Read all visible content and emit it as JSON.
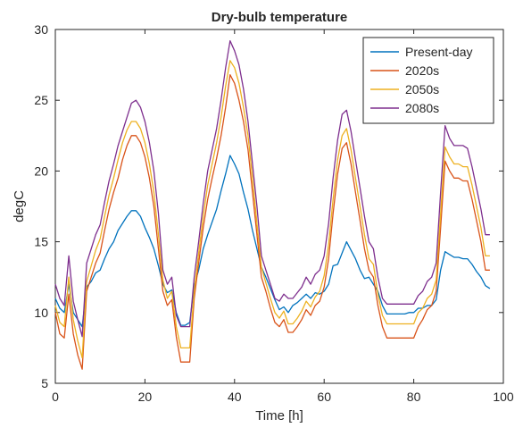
{
  "chart_data": {
    "type": "line",
    "title": "Dry-bulb temperature",
    "xlabel": "Time [h]",
    "ylabel": "degC",
    "xlim": [
      0,
      100
    ],
    "ylim": [
      5,
      30
    ],
    "xticks": [
      0,
      20,
      40,
      60,
      80,
      100
    ],
    "yticks": [
      5,
      10,
      15,
      20,
      25,
      30
    ],
    "grid": false,
    "legend_position": "top-right",
    "x": [
      0,
      1,
      2,
      3,
      4,
      5,
      6,
      7,
      8,
      9,
      10,
      11,
      12,
      13,
      14,
      15,
      16,
      17,
      18,
      19,
      20,
      21,
      22,
      23,
      24,
      25,
      26,
      27,
      28,
      29,
      30,
      31,
      32,
      33,
      34,
      35,
      36,
      37,
      38,
      39,
      40,
      41,
      42,
      43,
      44,
      45,
      46,
      47,
      48,
      49,
      50,
      51,
      52,
      53,
      54,
      55,
      56,
      57,
      58,
      59,
      60,
      61,
      62,
      63,
      64,
      65,
      66,
      67,
      68,
      69,
      70,
      71,
      72,
      73,
      74,
      75,
      76,
      77,
      78,
      79,
      80,
      81,
      82,
      83,
      84,
      85,
      86,
      87,
      88,
      89,
      90,
      91,
      92,
      93,
      94,
      95,
      96,
      97
    ],
    "series": [
      {
        "name": "Present-day",
        "color": "#0072BD",
        "values": [
          11.0,
          10.3,
          10.0,
          12.0,
          10.0,
          9.5,
          9.0,
          11.8,
          12.2,
          12.8,
          13.0,
          13.8,
          14.5,
          15.0,
          15.8,
          16.3,
          16.8,
          17.2,
          17.2,
          16.8,
          16.0,
          15.3,
          14.5,
          13.3,
          12.0,
          11.4,
          11.6,
          10.0,
          9.1,
          9.1,
          9.3,
          11.9,
          13.0,
          14.5,
          15.5,
          16.4,
          17.3,
          18.6,
          19.8,
          21.1,
          20.5,
          19.8,
          18.5,
          17.3,
          15.8,
          14.5,
          13.2,
          12.5,
          11.7,
          10.9,
          10.2,
          10.4,
          10.0,
          10.5,
          10.7,
          11.0,
          11.3,
          11.0,
          11.4,
          11.3,
          11.5,
          12.0,
          13.3,
          13.4,
          14.2,
          15.0,
          14.4,
          13.8,
          13.0,
          12.4,
          12.5,
          12.0,
          11.5,
          10.5,
          9.9,
          9.9,
          9.9,
          9.9,
          9.9,
          10.0,
          10.0,
          10.3,
          10.3,
          10.5,
          10.5,
          10.9,
          13.0,
          14.3,
          14.1,
          13.9,
          13.9,
          13.8,
          13.8,
          13.4,
          12.9,
          12.5,
          11.9,
          11.7
        ]
      },
      {
        "name": "2020s",
        "color": "#D95319",
        "values": [
          10.0,
          8.5,
          8.2,
          11.3,
          8.5,
          7.0,
          6.0,
          11.5,
          12.5,
          13.5,
          14.2,
          15.8,
          17.3,
          18.5,
          19.5,
          20.8,
          21.8,
          22.5,
          22.5,
          22.0,
          21.0,
          19.5,
          17.5,
          14.5,
          11.5,
          10.5,
          10.9,
          8.3,
          6.5,
          6.5,
          6.5,
          11.0,
          13.5,
          16.0,
          18.0,
          19.5,
          20.9,
          22.5,
          24.5,
          26.8,
          26.2,
          25.0,
          23.5,
          21.5,
          18.5,
          15.5,
          12.5,
          11.5,
          10.3,
          9.3,
          9.0,
          9.5,
          8.6,
          8.6,
          9.0,
          9.5,
          10.2,
          9.8,
          10.5,
          10.8,
          11.8,
          13.8,
          17.0,
          19.8,
          21.6,
          22.0,
          20.5,
          18.5,
          16.5,
          14.5,
          13.0,
          12.5,
          10.5,
          9.0,
          8.2,
          8.2,
          8.2,
          8.2,
          8.2,
          8.2,
          8.2,
          9.0,
          9.5,
          10.2,
          10.5,
          11.5,
          16.0,
          20.7,
          20.0,
          19.5,
          19.5,
          19.3,
          19.3,
          18.0,
          16.5,
          15.0,
          13.0,
          13.0
        ]
      },
      {
        "name": "2050s",
        "color": "#EDB120",
        "values": [
          10.5,
          9.3,
          9.0,
          12.5,
          9.5,
          8.0,
          6.8,
          12.2,
          13.3,
          14.4,
          15.2,
          16.8,
          18.3,
          19.5,
          20.8,
          22.0,
          22.9,
          23.5,
          23.5,
          23.0,
          22.0,
          20.5,
          18.5,
          15.5,
          12.3,
          11.0,
          11.5,
          9.0,
          7.5,
          7.5,
          7.5,
          11.5,
          14.2,
          16.8,
          19.0,
          20.5,
          22.0,
          23.8,
          26.0,
          27.8,
          27.3,
          26.2,
          24.5,
          22.5,
          19.5,
          16.3,
          13.2,
          12.1,
          11.0,
          10.0,
          9.6,
          10.1,
          9.2,
          9.2,
          9.6,
          10.1,
          10.8,
          10.4,
          11.1,
          11.5,
          12.6,
          14.8,
          18.0,
          20.8,
          22.5,
          23.0,
          21.5,
          19.5,
          17.5,
          15.5,
          13.8,
          13.4,
          11.3,
          9.8,
          9.2,
          9.2,
          9.2,
          9.2,
          9.2,
          9.2,
          9.2,
          10.0,
          10.3,
          11.0,
          11.3,
          12.3,
          17.0,
          21.7,
          21.0,
          20.5,
          20.5,
          20.3,
          20.3,
          19.0,
          17.5,
          16.0,
          14.0,
          14.0
        ]
      },
      {
        "name": "2080s",
        "color": "#7E2F8E",
        "values": [
          12.0,
          11.0,
          10.5,
          14.0,
          10.8,
          9.5,
          8.3,
          13.5,
          14.5,
          15.5,
          16.2,
          17.8,
          19.3,
          20.5,
          21.8,
          22.8,
          23.8,
          24.8,
          25.0,
          24.5,
          23.5,
          22.0,
          20.0,
          17.0,
          13.0,
          12.0,
          12.5,
          9.8,
          9.0,
          9.0,
          9.0,
          12.5,
          15.0,
          17.7,
          20.0,
          21.5,
          23.0,
          25.0,
          27.3,
          29.2,
          28.5,
          27.5,
          25.8,
          23.5,
          20.5,
          17.5,
          14.0,
          13.0,
          12.0,
          11.0,
          10.8,
          11.3,
          11.0,
          11.0,
          11.4,
          11.8,
          12.5,
          12.0,
          12.7,
          13.0,
          14.0,
          16.3,
          19.5,
          22.2,
          24.0,
          24.3,
          22.8,
          20.8,
          18.8,
          16.8,
          15.0,
          14.5,
          12.5,
          11.0,
          10.6,
          10.6,
          10.6,
          10.6,
          10.6,
          10.6,
          10.6,
          11.2,
          11.5,
          12.2,
          12.5,
          13.5,
          18.5,
          23.2,
          22.3,
          21.8,
          21.8,
          21.8,
          21.6,
          20.3,
          18.8,
          17.3,
          15.5,
          15.5
        ]
      }
    ]
  }
}
